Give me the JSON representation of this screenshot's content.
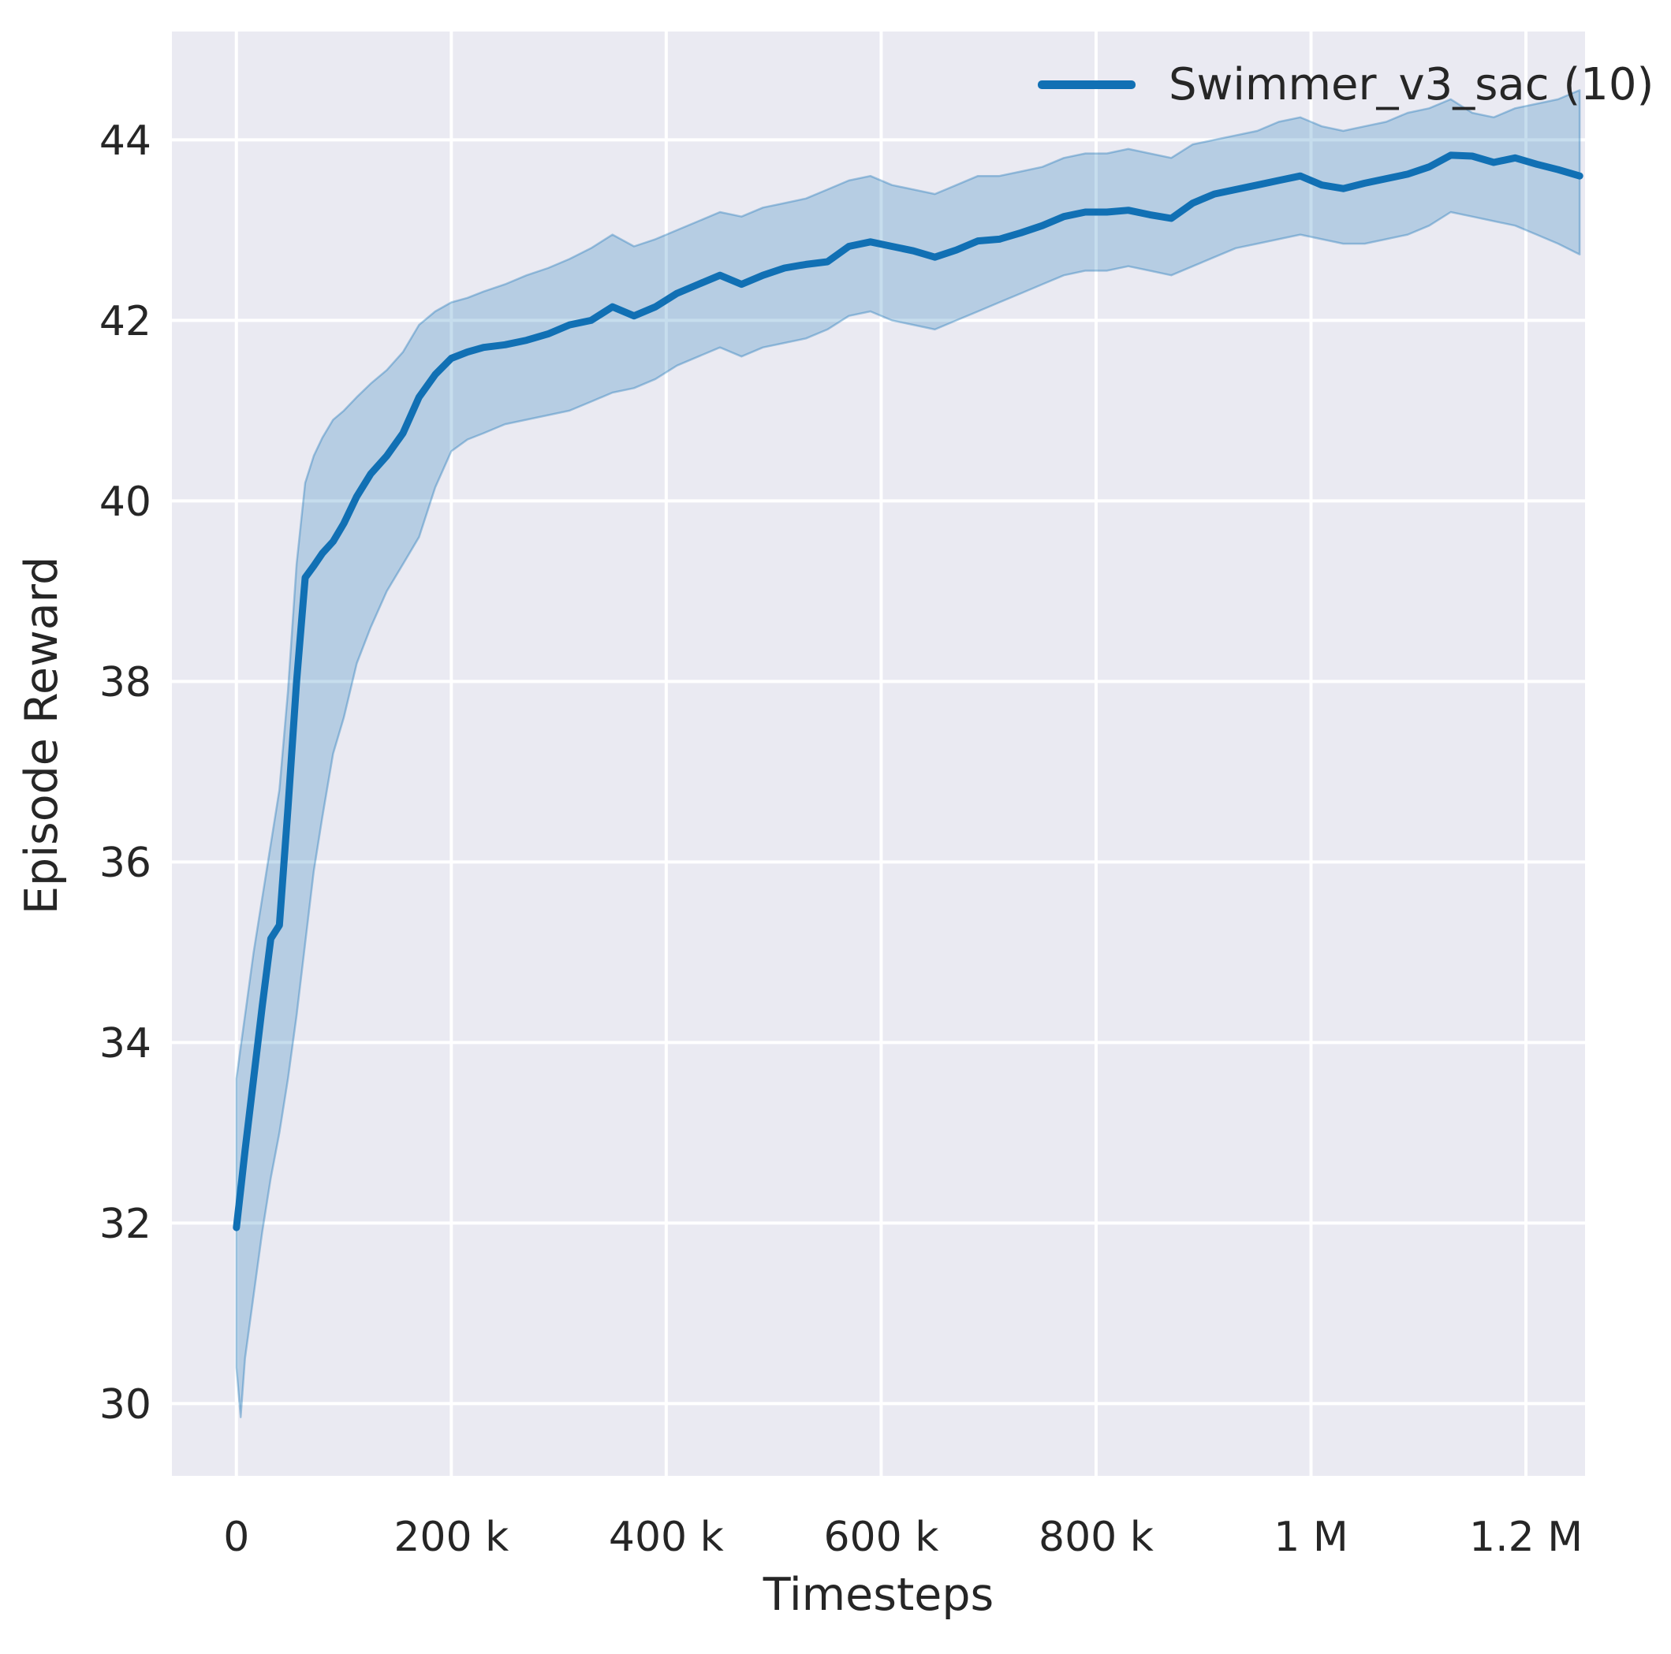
{
  "figure": {
    "background": "#ffffff",
    "plot_background": "#eaeaf2",
    "grid_color": "#ffffff",
    "text_color": "#262626"
  },
  "chart_data": {
    "type": "line",
    "title": "",
    "xlabel": "Timesteps",
    "ylabel": "Episode Reward",
    "legend": [
      "Swimmer_v3_sac (10)"
    ],
    "legend_position": "upper right",
    "grid": true,
    "xlim": [
      -60000,
      1255000
    ],
    "ylim": [
      29.2,
      45.2
    ],
    "x_ticks": [
      {
        "value": 0,
        "label": "0"
      },
      {
        "value": 200000,
        "label": "200 k"
      },
      {
        "value": 400000,
        "label": "400 k"
      },
      {
        "value": 600000,
        "label": "600 k"
      },
      {
        "value": 800000,
        "label": "800 k"
      },
      {
        "value": 1000000,
        "label": "1 M"
      },
      {
        "value": 1200000,
        "label": "1.2 M"
      }
    ],
    "y_ticks": [
      {
        "value": 30,
        "label": "30"
      },
      {
        "value": 32,
        "label": "32"
      },
      {
        "value": 34,
        "label": "34"
      },
      {
        "value": 36,
        "label": "36"
      },
      {
        "value": 38,
        "label": "38"
      },
      {
        "value": 40,
        "label": "40"
      },
      {
        "value": 42,
        "label": "42"
      },
      {
        "value": 44,
        "label": "44"
      }
    ],
    "colors": {
      "line": "#1170b4",
      "band_fill": "rgba(17,112,180,0.24)",
      "band_edge": "rgba(17,112,180,0.35)"
    },
    "series": [
      {
        "name": "Swimmer_v3_sac (10)",
        "x": [
          0,
          4000,
          8000,
          16000,
          24000,
          32000,
          40000,
          48000,
          56000,
          64000,
          72000,
          80000,
          90000,
          100000,
          112000,
          125000,
          140000,
          155000,
          170000,
          185000,
          200000,
          215000,
          230000,
          250000,
          270000,
          290000,
          310000,
          330000,
          350000,
          370000,
          390000,
          410000,
          430000,
          450000,
          470000,
          490000,
          510000,
          530000,
          550000,
          570000,
          590000,
          610000,
          630000,
          650000,
          670000,
          690000,
          710000,
          730000,
          750000,
          770000,
          790000,
          810000,
          830000,
          850000,
          870000,
          890000,
          910000,
          930000,
          950000,
          970000,
          990000,
          1010000,
          1030000,
          1050000,
          1070000,
          1090000,
          1110000,
          1130000,
          1150000,
          1170000,
          1190000,
          1210000,
          1230000,
          1250000
        ],
        "mean": [
          31.95,
          32.37,
          32.8,
          33.6,
          34.4,
          35.15,
          35.3,
          36.6,
          38.0,
          39.15,
          39.28,
          39.42,
          39.55,
          39.75,
          40.05,
          40.3,
          40.5,
          40.75,
          41.15,
          41.4,
          41.58,
          41.65,
          41.7,
          41.73,
          41.78,
          41.85,
          41.95,
          42.0,
          42.15,
          42.05,
          42.15,
          42.3,
          42.4,
          42.5,
          42.4,
          42.5,
          42.58,
          42.62,
          42.65,
          42.82,
          42.87,
          42.82,
          42.77,
          42.7,
          42.78,
          42.88,
          42.9,
          42.97,
          43.05,
          43.15,
          43.2,
          43.2,
          43.22,
          43.17,
          43.13,
          43.3,
          43.4,
          43.45,
          43.5,
          43.55,
          43.6,
          43.5,
          43.46,
          43.52,
          43.57,
          43.62,
          43.7,
          43.83,
          43.82,
          43.75,
          43.8,
          43.73,
          43.67,
          43.6
        ],
        "lower": [
          30.4,
          29.85,
          30.5,
          31.2,
          31.9,
          32.5,
          33.0,
          33.6,
          34.3,
          35.1,
          35.9,
          36.5,
          37.2,
          37.6,
          38.2,
          38.6,
          39.0,
          39.3,
          39.6,
          40.15,
          40.55,
          40.68,
          40.75,
          40.85,
          40.9,
          40.95,
          41.0,
          41.1,
          41.2,
          41.25,
          41.35,
          41.5,
          41.6,
          41.7,
          41.6,
          41.7,
          41.75,
          41.8,
          41.9,
          42.05,
          42.1,
          42.0,
          41.95,
          41.9,
          42.0,
          42.1,
          42.2,
          42.3,
          42.4,
          42.5,
          42.55,
          42.55,
          42.6,
          42.55,
          42.5,
          42.6,
          42.7,
          42.8,
          42.85,
          42.9,
          42.95,
          42.9,
          42.85,
          42.85,
          42.9,
          42.95,
          43.05,
          43.2,
          43.15,
          43.1,
          43.05,
          42.95,
          42.85,
          42.73
        ],
        "upper": [
          33.6,
          33.95,
          34.3,
          35.0,
          35.6,
          36.2,
          36.8,
          37.9,
          39.3,
          40.2,
          40.5,
          40.7,
          40.9,
          41.0,
          41.15,
          41.3,
          41.45,
          41.65,
          41.95,
          42.1,
          42.2,
          42.25,
          42.32,
          42.4,
          42.5,
          42.58,
          42.68,
          42.8,
          42.95,
          42.82,
          42.9,
          43.0,
          43.1,
          43.2,
          43.15,
          43.25,
          43.3,
          43.35,
          43.45,
          43.55,
          43.6,
          43.5,
          43.45,
          43.4,
          43.5,
          43.6,
          43.6,
          43.65,
          43.7,
          43.8,
          43.85,
          43.85,
          43.9,
          43.85,
          43.8,
          43.95,
          44.0,
          44.05,
          44.1,
          44.2,
          44.25,
          44.15,
          44.1,
          44.15,
          44.2,
          44.3,
          44.35,
          44.45,
          44.3,
          44.25,
          44.35,
          44.4,
          44.45,
          44.55
        ]
      }
    ]
  }
}
